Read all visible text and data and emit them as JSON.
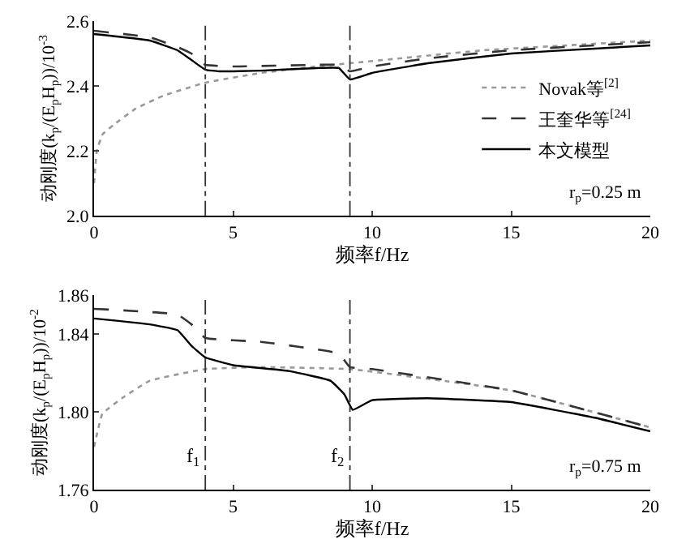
{
  "chart_data": [
    {
      "type": "line",
      "xlabel": "频率f/Hz",
      "ylabel": "动刚度(k$_{p}$/(E$_{p}$H$_{p}$))/10$^{-3}$",
      "xlim": [
        0,
        20
      ],
      "xticks": [
        0,
        5,
        10,
        15,
        20
      ],
      "ylim": [
        2.0,
        2.6
      ],
      "yticks": [
        {
          "value": 2.0,
          "label": "2.0"
        },
        2.2,
        2.4,
        2.6
      ],
      "legend": "right",
      "marker": "none",
      "series": [
        {
          "name": "Novak等$^{[2]}$",
          "color": "#999999",
          "line_style": "dotted",
          "x": [
            0,
            0.1,
            0.3,
            0.7,
            1.5,
            2.5,
            4,
            6,
            8,
            9.2,
            11,
            14,
            17,
            20
          ],
          "values": [
            2.1,
            2.2,
            2.25,
            2.28,
            2.33,
            2.37,
            2.41,
            2.44,
            2.46,
            2.47,
            2.485,
            2.51,
            2.525,
            2.54
          ]
        },
        {
          "name": "王奎华等$^{[24]}$",
          "color": "#333333",
          "line_style": "dashed",
          "x": [
            0,
            2,
            3,
            3.5,
            4,
            5,
            8,
            8.8,
            9.2,
            10,
            12,
            15,
            18,
            20
          ],
          "values": [
            2.57,
            2.55,
            2.52,
            2.5,
            2.465,
            2.46,
            2.465,
            2.465,
            2.445,
            2.46,
            2.485,
            2.51,
            2.525,
            2.535
          ]
        },
        {
          "name": "本文模型",
          "color": "#000000",
          "line_style": "solid",
          "x": [
            0,
            2,
            3,
            3.5,
            4,
            4.5,
            6,
            8,
            8.8,
            9.2,
            10,
            12,
            15,
            18,
            20
          ],
          "values": [
            2.56,
            2.54,
            2.51,
            2.48,
            2.45,
            2.445,
            2.447,
            2.455,
            2.455,
            2.42,
            2.44,
            2.47,
            2.5,
            2.515,
            2.525
          ]
        }
      ],
      "ref_lines": [
        {
          "axis": "x",
          "value": 4,
          "color": "#333333",
          "line_style": "dashdot"
        },
        {
          "axis": "x",
          "value": 9.2,
          "color": "#333333",
          "line_style": "dashdot"
        }
      ],
      "annotations": [
        "r$_{p}$=0.25 m"
      ]
    },
    {
      "type": "line",
      "xlabel": "频率f/Hz",
      "ylabel": "动刚度(k$_{p}$/(E$_{p}$H$_{p}$))/10$^{-2}$",
      "xlim": [
        0,
        20
      ],
      "xticks": [
        0,
        5,
        10,
        15,
        20
      ],
      "ylim": [
        1.76,
        1.86
      ],
      "yticks": [
        1.76,
        {
          "value": 1.8,
          "label": "1.80"
        },
        1.84,
        1.86
      ],
      "legend": false,
      "marker": "none",
      "series": [
        {
          "color": "#999999",
          "line_style": "dotted",
          "x": [
            0,
            0.3,
            1,
            2,
            4,
            6,
            9.2,
            12,
            15,
            20
          ],
          "values": [
            1.782,
            1.799,
            1.807,
            1.816,
            1.822,
            1.823,
            1.822,
            1.817,
            1.811,
            1.792
          ]
        },
        {
          "color": "#333333",
          "line_style": "dashed",
          "x": [
            0,
            3,
            3.5,
            4,
            6,
            8.8,
            9.2,
            10,
            15,
            20
          ],
          "values": [
            1.853,
            1.85,
            1.845,
            1.838,
            1.836,
            1.83,
            1.823,
            1.822,
            1.811,
            1.792
          ]
        },
        {
          "color": "#000000",
          "line_style": "solid",
          "x": [
            0,
            2,
            3,
            3.5,
            4,
            5,
            7,
            8.5,
            9,
            9.3,
            10,
            12,
            15,
            18,
            20
          ],
          "values": [
            1.848,
            1.845,
            1.842,
            1.834,
            1.828,
            1.824,
            1.821,
            1.816,
            1.809,
            1.801,
            1.806,
            1.807,
            1.805,
            1.797,
            1.79
          ]
        }
      ],
      "ref_lines": [
        {
          "axis": "x",
          "value": 4,
          "color": "#333333",
          "line_style": "dashdot"
        },
        {
          "axis": "x",
          "value": 9.2,
          "color": "#333333",
          "line_style": "dashdot"
        }
      ],
      "annotations": [
        {
          "text": "f$_{1}$",
          "x": 4,
          "y": 1.768
        },
        {
          "text": "f$_{2}$",
          "x": 9.2,
          "y": 1.768
        },
        "r$_{p}$=0.75 m"
      ]
    }
  ]
}
